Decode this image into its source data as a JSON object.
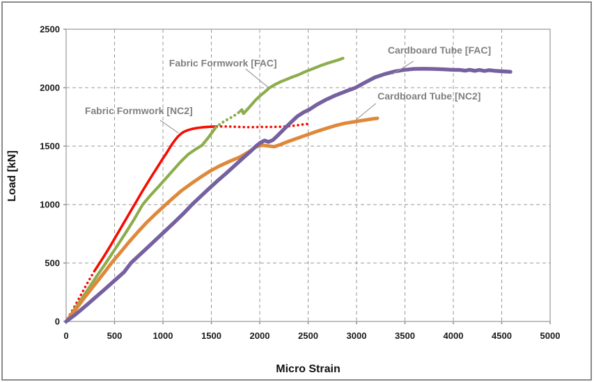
{
  "figure": {
    "background": "#FFFFFF",
    "frame_color": "#898989"
  },
  "chart_data": {
    "type": "line",
    "title": "",
    "xlabel": "Micro Strain",
    "ylabel": "Load [kN]",
    "xlim": [
      0,
      5000
    ],
    "ylim": [
      0,
      2500
    ],
    "x_ticks": [
      0,
      500,
      1000,
      1500,
      2000,
      2500,
      3000,
      3500,
      4000,
      4500,
      5000
    ],
    "y_ticks": [
      0,
      500,
      1000,
      1500,
      2000,
      2500
    ],
    "grid": true,
    "grid_style": "dashed",
    "gridline_color": "#979797",
    "legend_position": "none (inline text annotations with leader lines)",
    "annotation_color": "#808080",
    "series": [
      {
        "name": "Fabric Formwork [NC2]",
        "color": "#F80B00",
        "width": 3.6,
        "segments": [
          {
            "style": "dotted",
            "points": [
              [
                15,
                25
              ],
              [
                55,
                80
              ],
              [
                95,
                140
              ],
              [
                135,
                200
              ],
              [
                175,
                262
              ],
              [
                215,
                322
              ],
              [
                255,
                380
              ],
              [
                295,
                435
              ]
            ]
          },
          {
            "style": "solid",
            "points": [
              [
                295,
                435
              ],
              [
                340,
                492
              ],
              [
                385,
                550
              ],
              [
                430,
                610
              ],
              [
                470,
                665
              ],
              [
                510,
                722
              ],
              [
                550,
                778
              ],
              [
                590,
                835
              ],
              [
                630,
                892
              ],
              [
                670,
                948
              ],
              [
                710,
                1005
              ],
              [
                750,
                1062
              ],
              [
                790,
                1118
              ],
              [
                830,
                1172
              ],
              [
                870,
                1225
              ],
              [
                910,
                1278
              ],
              [
                950,
                1330
              ],
              [
                990,
                1382
              ],
              [
                1030,
                1432
              ],
              [
                1065,
                1478
              ],
              [
                1095,
                1518
              ],
              [
                1125,
                1552
              ],
              [
                1155,
                1582
              ],
              [
                1185,
                1605
              ],
              [
                1215,
                1622
              ],
              [
                1255,
                1636
              ],
              [
                1300,
                1647
              ],
              [
                1350,
                1655
              ],
              [
                1400,
                1660
              ],
              [
                1455,
                1664
              ],
              [
                1510,
                1666
              ],
              [
                1555,
                1667
              ]
            ]
          },
          {
            "style": "dotted",
            "points": [
              [
                1555,
                1667
              ],
              [
                1620,
                1668
              ],
              [
                1690,
                1667
              ],
              [
                1760,
                1665
              ],
              [
                1830,
                1663
              ],
              [
                1900,
                1662
              ],
              [
                1970,
                1663
              ],
              [
                2040,
                1664
              ],
              [
                2110,
                1664
              ],
              [
                2180,
                1665
              ],
              [
                2250,
                1667
              ],
              [
                2310,
                1671
              ],
              [
                2370,
                1676
              ],
              [
                2420,
                1682
              ],
              [
                2460,
                1687
              ],
              [
                2495,
                1690
              ]
            ]
          }
        ]
      },
      {
        "name": "Fabric Formwork [FAC]",
        "color": "#8CAD4B",
        "width": 4.2,
        "segments": [
          {
            "style": "solid",
            "points": [
              [
                0,
                0
              ],
              [
                100,
                120
              ],
              [
                200,
                243
              ],
              [
                300,
                368
              ],
              [
                410,
                500
              ],
              [
                510,
                625
              ],
              [
                610,
                752
              ],
              [
                700,
                870
              ],
              [
                791,
                1000
              ],
              [
                870,
                1078
              ],
              [
                950,
                1150
              ],
              [
                1030,
                1224
              ],
              [
                1110,
                1298
              ],
              [
                1190,
                1372
              ],
              [
                1265,
                1432
              ],
              [
                1335,
                1472
              ],
              [
                1405,
                1508
              ],
              [
                1475,
                1580
              ],
              [
                1545,
                1660
              ]
            ]
          },
          {
            "style": "dotted",
            "points": [
              [
                1545,
                1660
              ],
              [
                1600,
                1695
              ],
              [
                1660,
                1725
              ],
              [
                1720,
                1752
              ],
              [
                1770,
                1780
              ],
              [
                1800,
                1800
              ]
            ]
          },
          {
            "style": "solid",
            "points": [
              [
                1800,
                1800
              ],
              [
                1815,
                1812
              ],
              [
                1832,
                1778
              ],
              [
                1870,
                1812
              ],
              [
                1910,
                1850
              ],
              [
                1955,
                1892
              ],
              [
                2000,
                1928
              ],
              [
                2050,
                1962
              ],
              [
                2100,
                1998
              ],
              [
                2160,
                2028
              ],
              [
                2220,
                2052
              ],
              [
                2280,
                2072
              ],
              [
                2340,
                2092
              ],
              [
                2400,
                2110
              ],
              [
                2460,
                2133
              ],
              [
                2520,
                2153
              ],
              [
                2580,
                2172
              ],
              [
                2640,
                2192
              ],
              [
                2700,
                2209
              ],
              [
                2760,
                2224
              ],
              [
                2815,
                2238
              ],
              [
                2860,
                2252
              ]
            ]
          }
        ]
      },
      {
        "name": "Cardboard Tube [NC2]",
        "color": "#DF883B",
        "width": 5.0,
        "segments": [
          {
            "style": "solid",
            "points": [
              [
                0,
                0
              ],
              [
                100,
                105
              ],
              [
                200,
                215
              ],
              [
                300,
                320
              ],
              [
                400,
                425
              ],
              [
                468,
                500
              ],
              [
                560,
                590
              ],
              [
                650,
                680
              ],
              [
                740,
                765
              ],
              [
                830,
                845
              ],
              [
                930,
                925
              ],
              [
                1029,
                1000
              ],
              [
                1110,
                1060
              ],
              [
                1187,
                1116
              ],
              [
                1290,
                1178
              ],
              [
                1390,
                1235
              ],
              [
                1490,
                1288
              ],
              [
                1590,
                1332
              ],
              [
                1690,
                1370
              ],
              [
                1790,
                1405
              ],
              [
                1890,
                1452
              ],
              [
                1964,
                1495
              ],
              [
                2030,
                1508
              ],
              [
                2090,
                1501
              ],
              [
                2150,
                1495
              ],
              [
                2210,
                1512
              ],
              [
                2270,
                1532
              ],
              [
                2350,
                1556
              ],
              [
                2460,
                1588
              ],
              [
                2570,
                1620
              ],
              [
                2670,
                1647
              ],
              [
                2780,
                1675
              ],
              [
                2880,
                1695
              ],
              [
                2980,
                1709
              ],
              [
                3080,
                1722
              ],
              [
                3160,
                1732
              ],
              [
                3215,
                1738
              ]
            ]
          }
        ]
      },
      {
        "name": "Cardboard Tube [FAC]",
        "color": "#7560A0",
        "width": 5.4,
        "segments": [
          {
            "style": "solid",
            "points": [
              [
                0,
                0
              ],
              [
                100,
                62
              ],
              [
                200,
                132
              ],
              [
                300,
                204
              ],
              [
                400,
                276
              ],
              [
                500,
                350
              ],
              [
                600,
                424
              ],
              [
                669,
                500
              ],
              [
                760,
                570
              ],
              [
                850,
                640
              ],
              [
                940,
                710
              ],
              [
                1030,
                780
              ],
              [
                1120,
                850
              ],
              [
                1210,
                922
              ],
              [
                1300,
                1000
              ],
              [
                1390,
                1070
              ],
              [
                1480,
                1140
              ],
              [
                1570,
                1208
              ],
              [
                1660,
                1272
              ],
              [
                1750,
                1340
              ],
              [
                1840,
                1408
              ],
              [
                1905,
                1455
              ],
              [
                1960,
                1498
              ],
              [
                2005,
                1528
              ],
              [
                2050,
                1548
              ],
              [
                2090,
                1536
              ],
              [
                2135,
                1552
              ],
              [
                2185,
                1590
              ],
              [
                2250,
                1645
              ],
              [
                2320,
                1702
              ],
              [
                2390,
                1756
              ],
              [
                2455,
                1790
              ],
              [
                2510,
                1812
              ],
              [
                2590,
                1855
              ],
              [
                2680,
                1895
              ],
              [
                2770,
                1930
              ],
              [
                2880,
                1966
              ],
              [
                2990,
                2000
              ],
              [
                3090,
                2045
              ],
              [
                3190,
                2088
              ],
              [
                3290,
                2116
              ],
              [
                3390,
                2138
              ],
              [
                3490,
                2152
              ],
              [
                3590,
                2160
              ],
              [
                3690,
                2162
              ],
              [
                3790,
                2160
              ],
              [
                3890,
                2157
              ],
              [
                3990,
                2153
              ],
              [
                4070,
                2152
              ],
              [
                4120,
                2145
              ],
              [
                4170,
                2153
              ],
              [
                4220,
                2144
              ],
              [
                4270,
                2152
              ],
              [
                4320,
                2143
              ],
              [
                4370,
                2150
              ],
              [
                4430,
                2144
              ],
              [
                4510,
                2140
              ],
              [
                4590,
                2136
              ]
            ]
          }
        ]
      }
    ],
    "annotations": [
      {
        "text": "Fabric Formwork [FAC]",
        "text_xy": [
          1620,
          2210
        ],
        "leader": [
          [
            1855,
            2160
          ],
          [
            2100,
            1995
          ]
        ]
      },
      {
        "text": "Fabric Formwork [NC2]",
        "text_xy": [
          750,
          1805
        ],
        "leader": [
          [
            970,
            1722
          ],
          [
            1160,
            1612
          ]
        ]
      },
      {
        "text": "Cardboard Tube [FAC]",
        "text_xy": [
          3856,
          2320
        ],
        "leader": [
          [
            3590,
            2227
          ],
          [
            3370,
            2115
          ]
        ]
      },
      {
        "text": "Cardboard Tube [NC2]",
        "text_xy": [
          3750,
          1930
        ],
        "leader": [
          [
            3200,
            1865
          ],
          [
            2995,
            1725
          ]
        ]
      }
    ]
  }
}
